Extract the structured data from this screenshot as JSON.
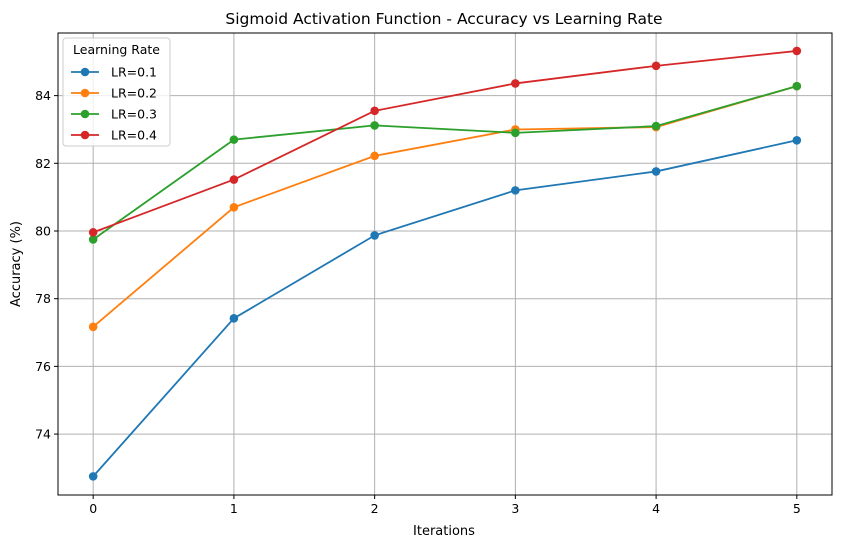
{
  "chart_data": {
    "type": "line",
    "title": "Sigmoid Activation Function - Accuracy vs Learning Rate",
    "xlabel": "Iterations",
    "ylabel": "Accuracy (%)",
    "x": [
      0,
      1,
      2,
      3,
      4,
      5
    ],
    "x_ticks": [
      "0",
      "1",
      "2",
      "3",
      "4",
      "5"
    ],
    "y_ticks": [
      74,
      76,
      78,
      80,
      82,
      84
    ],
    "xlim": [
      -0.25,
      5.25
    ],
    "ylim": [
      72.2,
      85.85
    ],
    "grid": true,
    "legend": {
      "title": "Learning Rate",
      "placement": "top-left"
    },
    "series": [
      {
        "name": "LR=0.1",
        "color": "#1f77b4",
        "values": [
          72.75,
          77.42,
          79.87,
          81.2,
          81.76,
          82.68
        ]
      },
      {
        "name": "LR=0.2",
        "color": "#ff7f0e",
        "values": [
          77.17,
          80.7,
          82.22,
          83.0,
          83.07,
          84.28
        ]
      },
      {
        "name": "LR=0.3",
        "color": "#2ca02c",
        "values": [
          79.75,
          82.7,
          83.12,
          82.9,
          83.1,
          84.28
        ]
      },
      {
        "name": "LR=0.4",
        "color": "#d62728",
        "values": [
          79.96,
          81.52,
          83.55,
          84.36,
          84.88,
          85.32
        ]
      }
    ]
  }
}
